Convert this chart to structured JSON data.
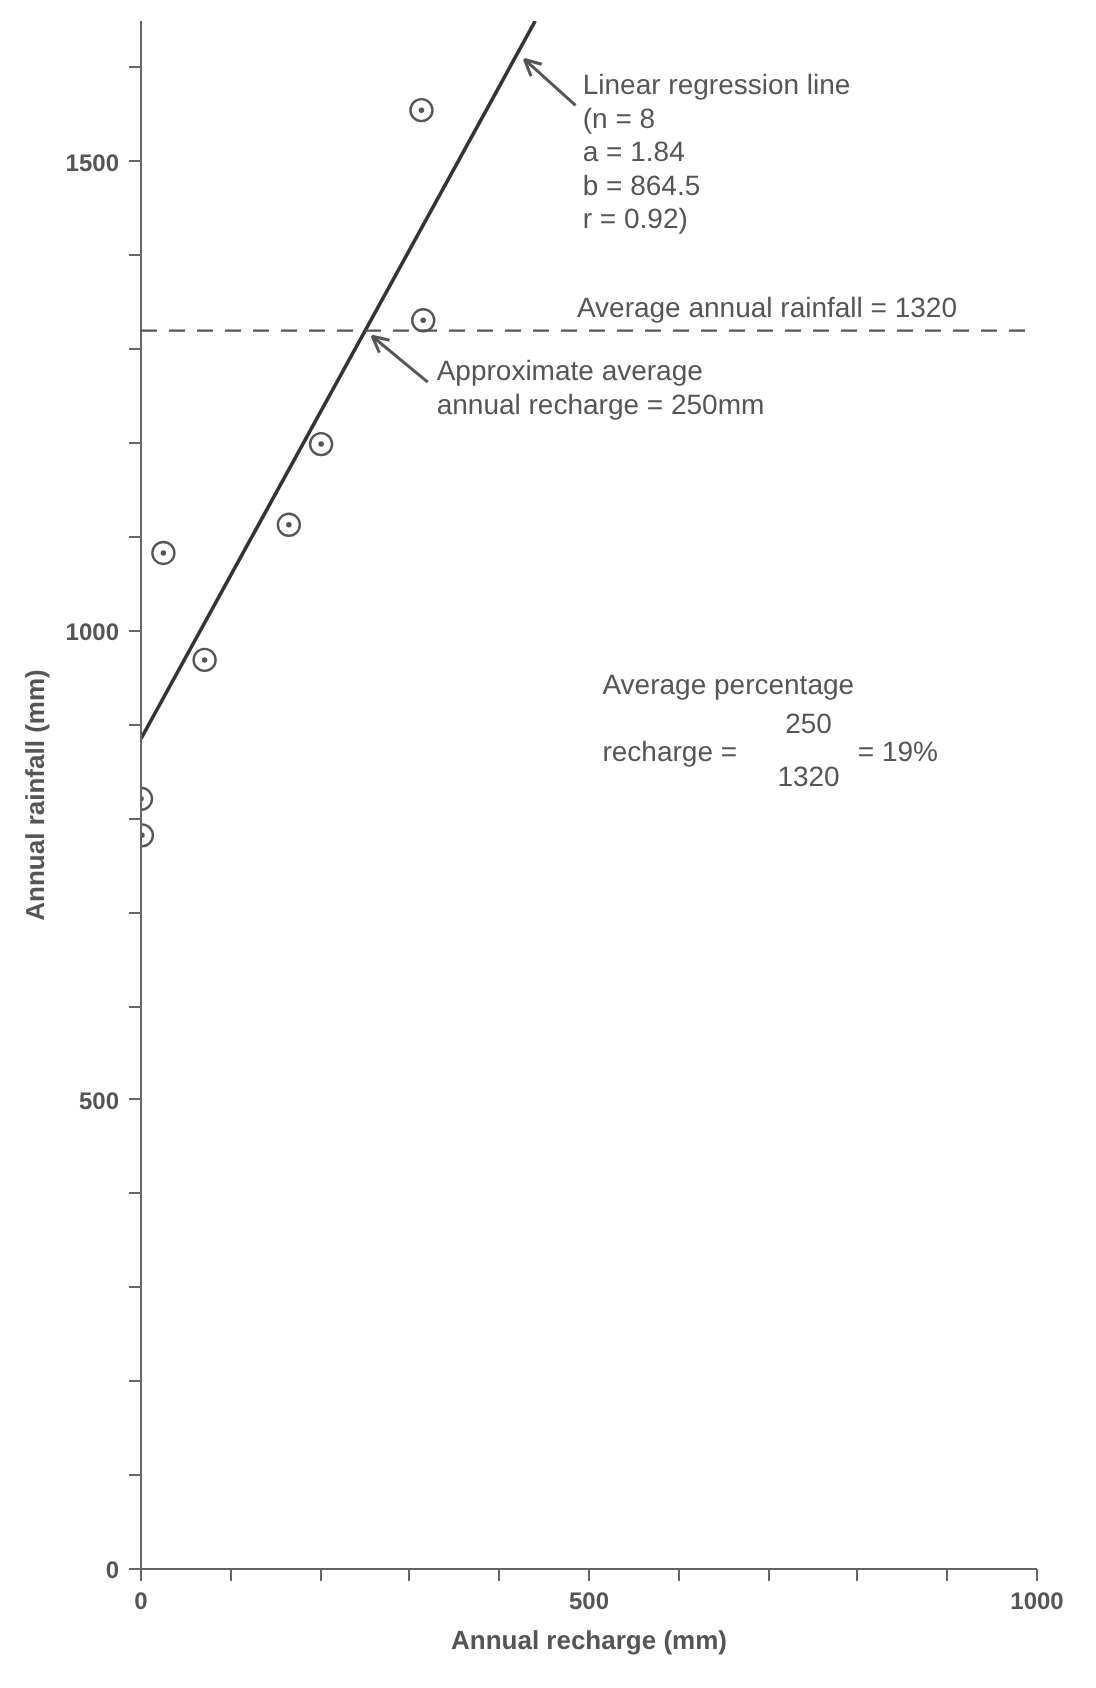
{
  "chart_data": {
    "type": "scatter",
    "xlabel": "Annual recharge (mm)",
    "ylabel": "Annual rainfall (mm)",
    "xlim": [
      0,
      1000
    ],
    "ylim": [
      0,
      1650
    ],
    "xticks": [
      0,
      {
        "value": 100,
        "label": null
      },
      {
        "value": 200,
        "label": null
      },
      {
        "value": 300,
        "label": null
      },
      {
        "value": 400,
        "label": null
      },
      500,
      {
        "value": 600,
        "label": null
      },
      {
        "value": 700,
        "label": null
      },
      {
        "value": 800,
        "label": null
      },
      {
        "value": 900,
        "label": null
      },
      1000
    ],
    "yticks": [
      0,
      {
        "value": 100,
        "label": null
      },
      {
        "value": 200,
        "label": null
      },
      {
        "value": 300,
        "label": null
      },
      {
        "value": 400,
        "label": null
      },
      500,
      {
        "value": 600,
        "label": null
      },
      {
        "value": 700,
        "label": null
      },
      {
        "value": 800,
        "label": null
      },
      {
        "value": 900,
        "label": null
      },
      1000,
      {
        "value": 1100,
        "label": null
      },
      {
        "value": 1200,
        "label": null
      },
      {
        "value": 1300,
        "label": null
      },
      {
        "value": 1400,
        "label": null
      },
      1500,
      {
        "value": 1600,
        "label": null
      }
    ],
    "grid": false,
    "series": [
      {
        "marker": "circle",
        "color": "#555555",
        "x": [
          313,
          315,
          201,
          165,
          25,
          71,
          0,
          1
        ],
        "values": [
          1555,
          1331,
          1199,
          1113,
          1083,
          969,
          821,
          782
        ]
      },
      {
        "type": "line",
        "color": "#333333",
        "line_style": "solid",
        "x": [
          0,
          440
        ],
        "values": [
          885,
          1650
        ]
      }
    ],
    "ref_lines": [
      {
        "axis": "y",
        "value": 1320,
        "label": "Average annual rainfall = 1320",
        "color": "#555555",
        "line_style": "dashed"
      }
    ],
    "annotations": [
      {
        "text": "Linear regression line\n(n = 8\n a = 1.84\n b = 864.5\n r = 0.92)",
        "x": 420,
        "y": 1615
      },
      {
        "text": "Approximate average\nannual recharge = 250mm",
        "x": 250,
        "y": 1320
      },
      "Average percentage",
      "recharge =",
      "250",
      "1320",
      "= 19%"
    ]
  }
}
